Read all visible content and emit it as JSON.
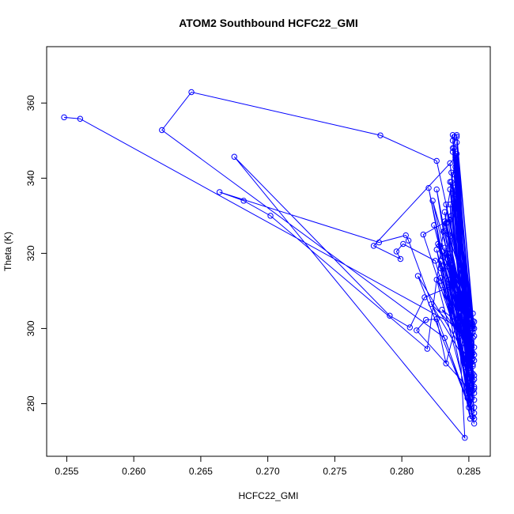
{
  "chart_data": {
    "type": "line",
    "title": "ATOM2 Southbound HCFC22_GMI",
    "xlabel": "HCFC22_GMI",
    "ylabel": "Theta (K)",
    "xlim": [
      0.2535,
      0.2866
    ],
    "ylim": [
      266,
      375
    ],
    "xticks": [
      "0.255",
      "0.260",
      "0.265",
      "0.270",
      "0.275",
      "0.280",
      "0.285"
    ],
    "yticks": [
      "280",
      "300",
      "320",
      "340",
      "360"
    ],
    "grid": false,
    "legend": "none",
    "color": "#0000ff",
    "series": [
      {
        "points": [
          [
            0.2548,
            356.2
          ],
          [
            0.256,
            355.8
          ],
          [
            0.2841,
            300.6
          ],
          [
            0.2836,
            333.0
          ],
          [
            0.285,
            292.0
          ],
          [
            0.284,
            346.0
          ],
          [
            0.2853,
            288.0
          ],
          [
            0.2838,
            351.5
          ],
          [
            0.2854,
            281.0
          ],
          [
            0.284,
            343.0
          ],
          [
            0.2852,
            296.0
          ],
          [
            0.2835,
            325.0
          ],
          [
            0.2849,
            285.0
          ],
          [
            0.2829,
            316.0
          ],
          [
            0.2854,
            277.5
          ],
          [
            0.2842,
            333.0
          ],
          [
            0.285,
            283.0
          ],
          [
            0.2836,
            337.0
          ],
          [
            0.2848,
            290.5
          ],
          [
            0.2816,
            325.0
          ],
          [
            0.2836,
            329.0
          ],
          [
            0.2853,
            293.5
          ],
          [
            0.283,
            305.0
          ],
          [
            0.2854,
            298.0
          ],
          [
            0.2838,
            350.0
          ],
          [
            0.2853,
            300.5
          ],
          [
            0.2826,
            344.6
          ],
          [
            0.2784,
            351.4
          ],
          [
            0.2643,
            362.9
          ],
          [
            0.2621,
            352.8
          ],
          [
            0.2832,
            297.5
          ],
          [
            0.285,
            279.0
          ],
          [
            0.2839,
            348.0
          ],
          [
            0.285,
            287.0
          ],
          [
            0.2841,
            351.0
          ],
          [
            0.2852,
            295.0
          ],
          [
            0.2836,
            344.0
          ],
          [
            0.2853,
            286.0
          ],
          [
            0.2833,
            328.0
          ],
          [
            0.2854,
            282.8
          ],
          [
            0.2826,
            321.0
          ],
          [
            0.2851,
            276.0
          ],
          [
            0.2838,
            336.0
          ],
          [
            0.2853,
            292.0
          ],
          [
            0.2832,
            331.0
          ],
          [
            0.2843,
            300.0
          ],
          [
            0.2826,
            313.0
          ],
          [
            0.2854,
            274.7
          ],
          [
            0.282,
            337.4
          ],
          [
            0.2843,
            298.0
          ],
          [
            0.2847,
            270.9
          ],
          [
            0.2675,
            345.7
          ],
          [
            0.2791,
            303.4
          ],
          [
            0.2806,
            300.3
          ],
          [
            0.2817,
            308.3
          ],
          [
            0.2835,
            311.0
          ],
          [
            0.2851,
            291.0
          ],
          [
            0.2812,
            314.0
          ],
          [
            0.2854,
            276.0
          ],
          [
            0.2805,
            323.4
          ],
          [
            0.2803,
            324.8
          ],
          [
            0.2783,
            322.9
          ],
          [
            0.2664,
            336.3
          ],
          [
            0.2682,
            334.0
          ],
          [
            0.2702,
            330.0
          ],
          [
            0.2819,
            294.6
          ],
          [
            0.2831,
            325.8
          ],
          [
            0.284,
            345.0
          ],
          [
            0.285,
            284.0
          ],
          [
            0.2811,
            299.5
          ],
          [
            0.2818,
            302.3
          ],
          [
            0.2826,
            302.5
          ],
          [
            0.2833,
            290.7
          ],
          [
            0.2844,
            306.0
          ],
          [
            0.283,
            316.5
          ],
          [
            0.2852,
            278.0
          ],
          [
            0.2841,
            346.5
          ],
          [
            0.2853,
            299.0
          ],
          [
            0.2836,
            320.0
          ],
          [
            0.2854,
            291.5
          ],
          [
            0.2842,
            329.0
          ],
          [
            0.2849,
            281.5
          ],
          [
            0.2835,
            313.0
          ],
          [
            0.2854,
            301.8
          ],
          [
            0.2828,
            322.0
          ],
          [
            0.2851,
            289.5
          ],
          [
            0.2824,
            327.5
          ],
          [
            0.2854,
            287.5
          ],
          [
            0.2822,
            306.5
          ],
          [
            0.2854,
            295.0
          ],
          [
            0.2839,
            341.0
          ],
          [
            0.2851,
            285.5
          ],
          [
            0.2833,
            333.0
          ],
          [
            0.2852,
            296.5
          ],
          [
            0.2837,
            339.0
          ],
          [
            0.2853,
            283.5
          ],
          [
            0.2829,
            318.0
          ],
          [
            0.2854,
            279.0
          ],
          [
            0.2832,
            326.0
          ],
          [
            0.285,
            298.5
          ],
          [
            0.2838,
            347.0
          ],
          [
            0.2854,
            300.0
          ],
          [
            0.2841,
            351.5
          ],
          [
            0.2853,
            302.0
          ],
          [
            0.283,
            320.5
          ],
          [
            0.2848,
            288.5
          ],
          [
            0.2825,
            318.0
          ],
          [
            0.2801,
            322.5
          ],
          [
            0.2796,
            320.5
          ],
          [
            0.2799,
            318.5
          ],
          [
            0.2779,
            322.0
          ],
          [
            0.284,
            345.5
          ],
          [
            0.2854,
            284.5
          ],
          [
            0.2832,
            321.5
          ],
          [
            0.2849,
            294.5
          ],
          [
            0.2839,
            337.5
          ],
          [
            0.2845,
            303.5
          ],
          [
            0.2834,
            316.5
          ],
          [
            0.2853,
            290.0
          ],
          [
            0.283,
            311.5
          ],
          [
            0.2854,
            284.0
          ],
          [
            0.2837,
            341.5
          ],
          [
            0.2853,
            301.0
          ],
          [
            0.2834,
            320.0
          ],
          [
            0.2847,
            296.0
          ],
          [
            0.2829,
            313.5
          ],
          [
            0.2852,
            291.0
          ],
          [
            0.2841,
            343.5
          ],
          [
            0.2854,
            293.0
          ],
          [
            0.2836,
            317.0
          ],
          [
            0.2853,
            297.5
          ],
          [
            0.2838,
            348.0
          ],
          [
            0.2851,
            283.0
          ],
          [
            0.2831,
            319.0
          ],
          [
            0.2853,
            276.5
          ],
          [
            0.2826,
            337.0
          ],
          [
            0.2843,
            304.5
          ],
          [
            0.2836,
            324.5
          ],
          [
            0.2851,
            289.0
          ],
          [
            0.2823,
            334.0
          ],
          [
            0.2844,
            308.0
          ],
          [
            0.2837,
            330.0
          ],
          [
            0.2852,
            293.0
          ],
          [
            0.2834,
            318.5
          ],
          [
            0.2854,
            286.5
          ],
          [
            0.2839,
            334.5
          ],
          [
            0.2849,
            299.0
          ],
          [
            0.2835,
            311.0
          ],
          [
            0.2853,
            290.5
          ],
          [
            0.2841,
            349.5
          ],
          [
            0.2853,
            304.0
          ],
          [
            0.2832,
            328.5
          ],
          [
            0.285,
            296.0
          ],
          [
            0.2827,
            322.5
          ],
          [
            0.2845,
            305.0
          ],
          [
            0.2836,
            339.0
          ],
          [
            0.2852,
            292.5
          ],
          [
            0.2839,
            351.0
          ],
          [
            0.2853,
            300.0
          ]
        ]
      }
    ]
  }
}
